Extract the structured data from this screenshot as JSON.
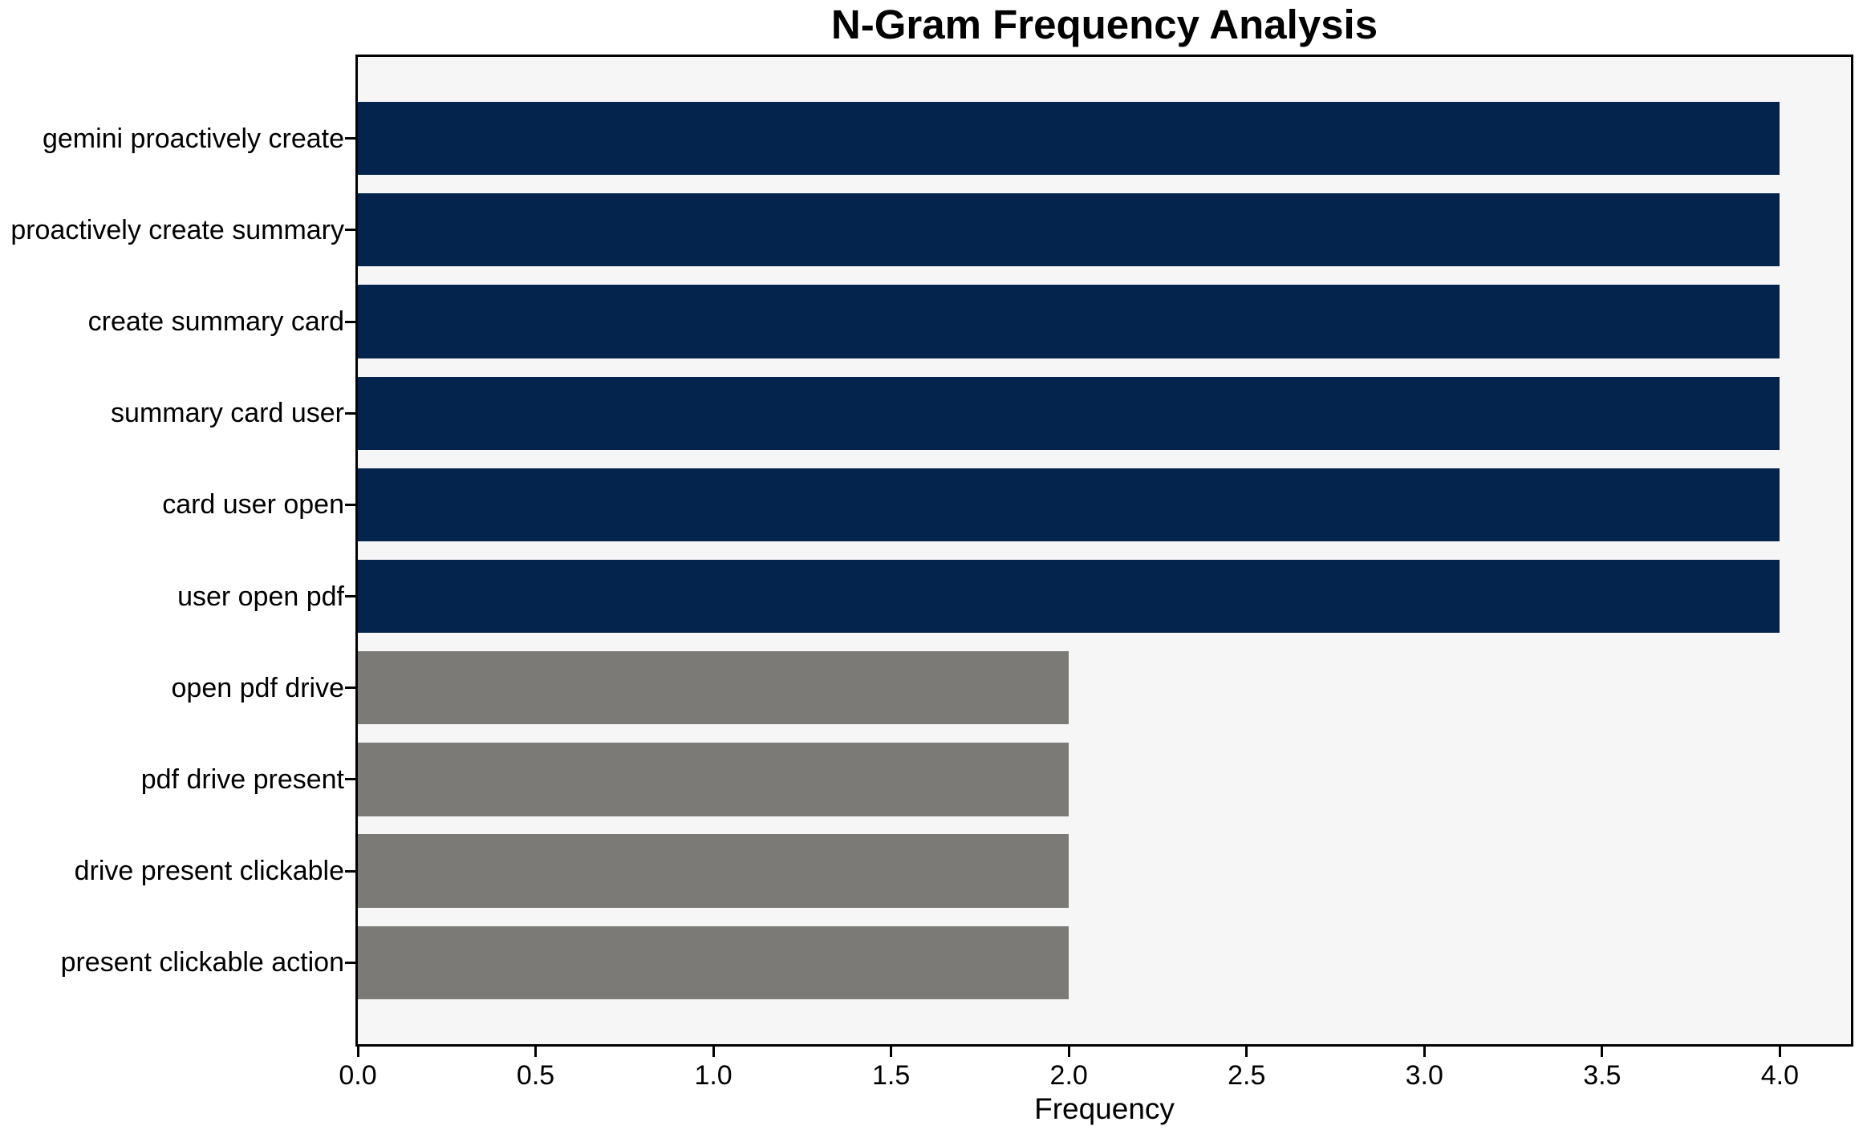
{
  "chart_data": {
    "type": "bar",
    "orientation": "horizontal",
    "title": "N-Gram Frequency Analysis",
    "xlabel": "Frequency",
    "ylabel": "",
    "categories": [
      "gemini proactively create",
      "proactively create summary",
      "create summary card",
      "summary card user",
      "card user open",
      "user open pdf",
      "open pdf drive",
      "pdf drive present",
      "drive present clickable",
      "present clickable action"
    ],
    "values": [
      4,
      4,
      4,
      4,
      4,
      4,
      2,
      2,
      2,
      2
    ],
    "bar_colors": [
      "#04244e",
      "#04244e",
      "#04244e",
      "#04244e",
      "#04244e",
      "#04244e",
      "#7b7a76",
      "#7b7a76",
      "#7b7a76",
      "#7b7a76"
    ],
    "xlim": [
      0,
      4.2
    ],
    "xtick_labels": [
      "0.0",
      "0.5",
      "1.0",
      "1.5",
      "2.0",
      "2.5",
      "3.0",
      "3.5",
      "4.0"
    ],
    "grid": false,
    "legend": null,
    "bar_height_frac": 0.8
  },
  "colors": {
    "bar_primary": "#04244e",
    "bar_secondary": "#7b7a76",
    "plot_background": "#f7f6f6",
    "figure_background": "#ffffff",
    "spine": "#000000",
    "text": "#000000"
  }
}
